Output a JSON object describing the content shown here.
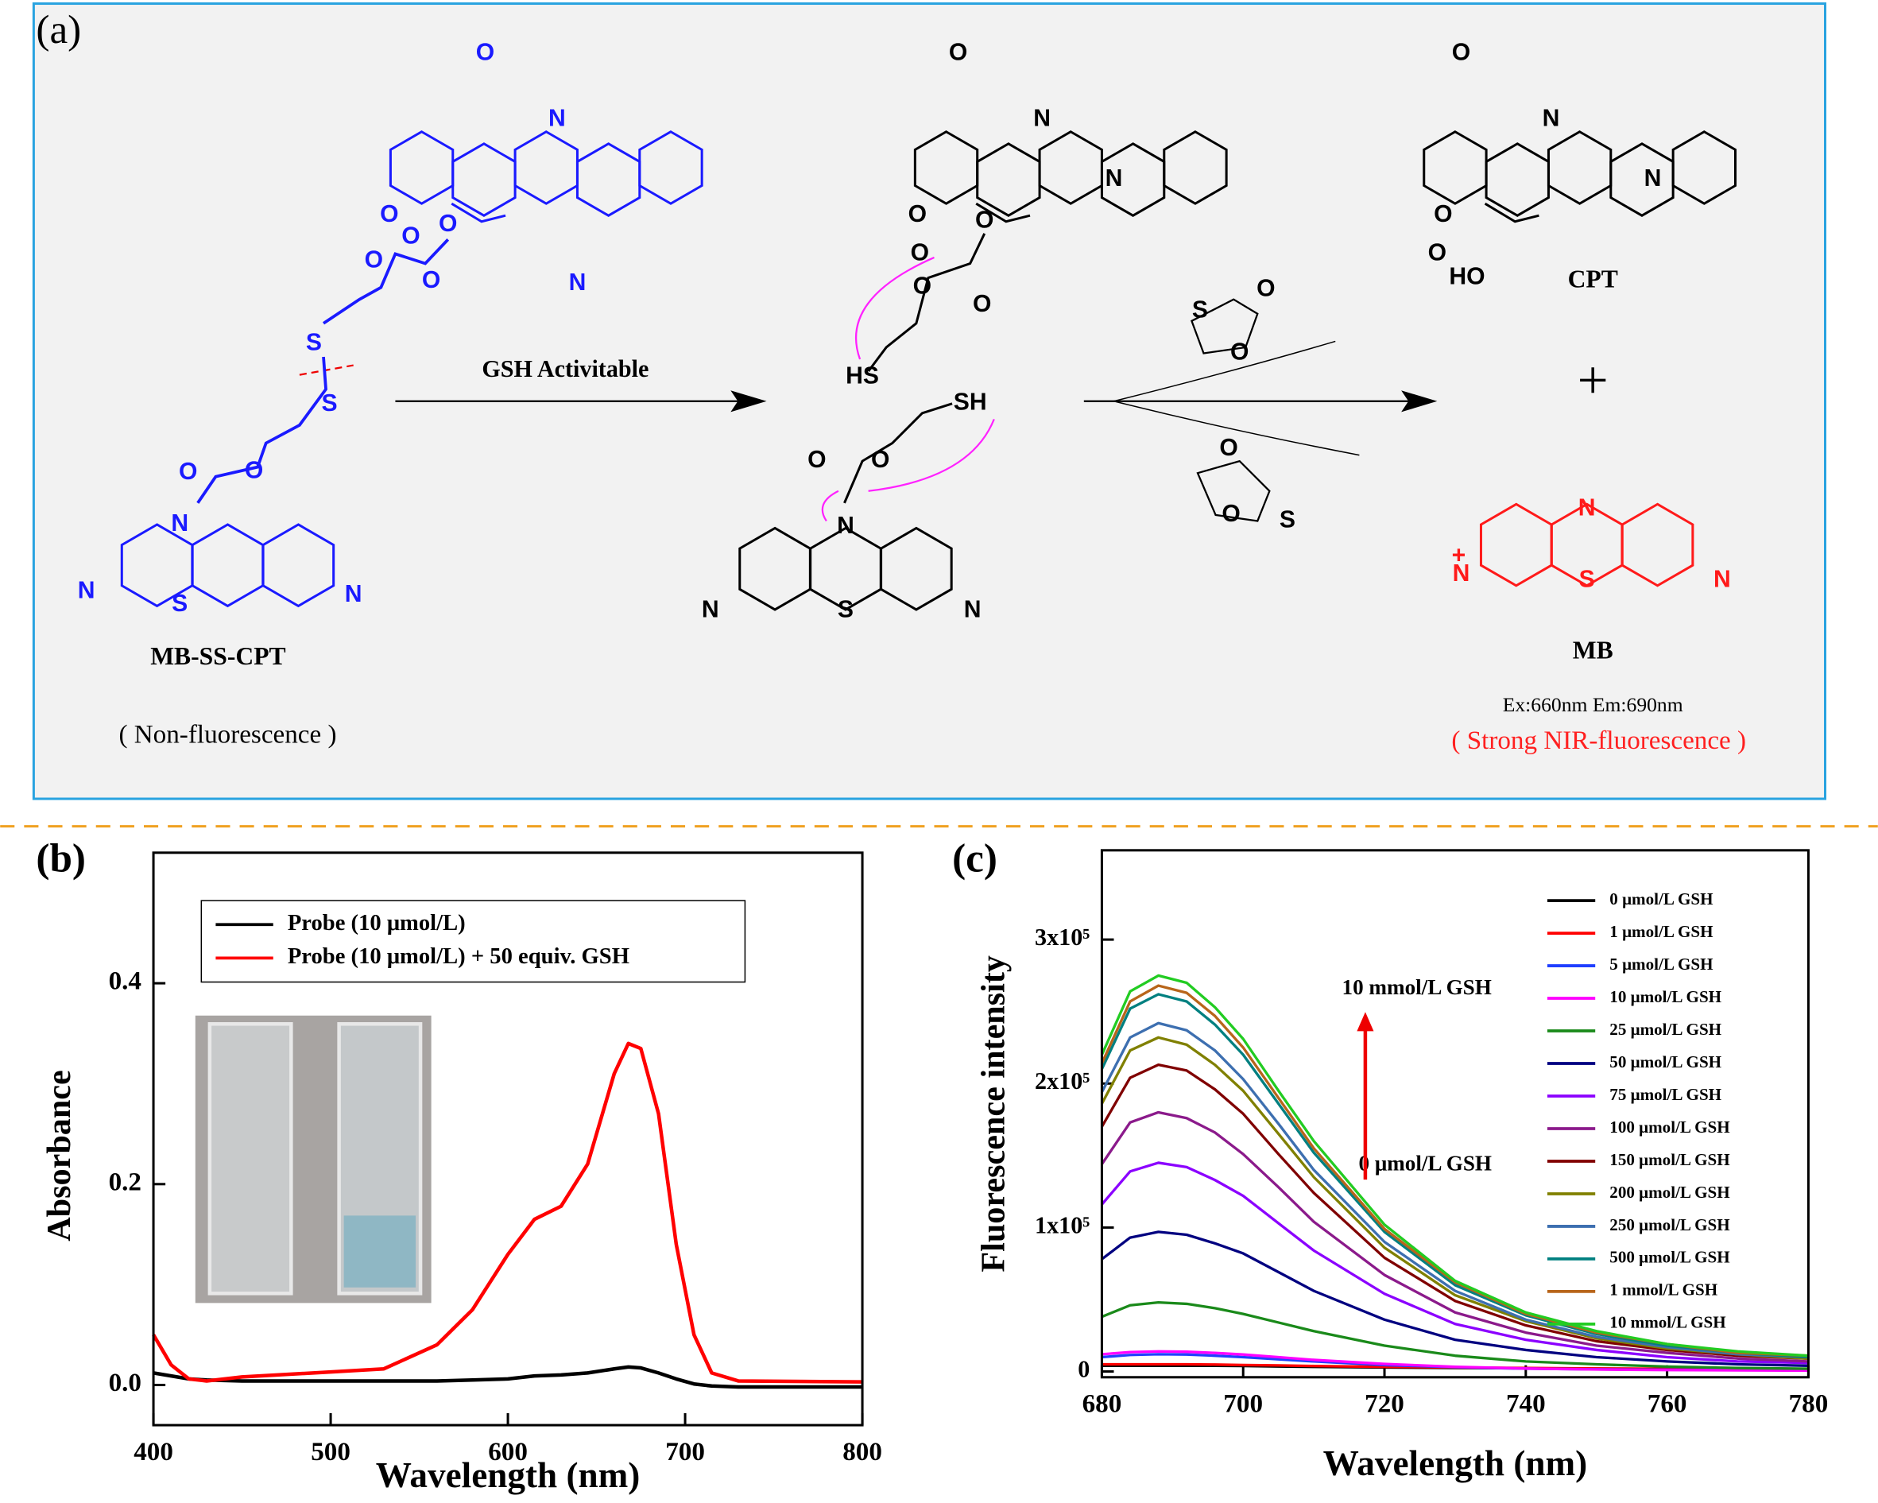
{
  "scheme": {
    "panel_label": "(a)",
    "probe": {
      "name": "MB-SS-CPT",
      "note": "( Non-fluorescence )",
      "atoms": [
        "O",
        "O",
        "O",
        "N",
        "N",
        "O",
        "O",
        "O",
        "S",
        "S",
        "O",
        "O",
        "N",
        "S",
        "N",
        "N"
      ]
    },
    "arrow_label": "GSH  Activitable",
    "intermediate": {
      "atoms": [
        "O",
        "O",
        "O",
        "N",
        "N",
        "O",
        "O",
        "O",
        "HS",
        "SH",
        "O",
        "O",
        "N",
        "S",
        "N",
        "N"
      ]
    },
    "byproducts": {
      "atoms": [
        "S",
        "O",
        "O",
        "O",
        "O",
        "S"
      ]
    },
    "cpt": {
      "name": "CPT",
      "atoms": [
        "O",
        "O",
        "O",
        "N",
        "N",
        "HO"
      ]
    },
    "plus": "+",
    "mb": {
      "name": "MB",
      "wavelengths": "Ex:660nm  Em:690nm",
      "note": "( Strong NIR-fluorescence )",
      "atoms": [
        "N",
        "S",
        "N",
        "+",
        "N"
      ]
    }
  },
  "chart_data": [
    {
      "type": "line",
      "panel_label": "(b)",
      "xlabel": "Wavelength (nm)",
      "ylabel": "Absorbance",
      "x": [
        400,
        410,
        420,
        430,
        450,
        500,
        530,
        560,
        580,
        600,
        615,
        630,
        645,
        660,
        668,
        675,
        685,
        695,
        705,
        715,
        730,
        800
      ],
      "series": [
        {
          "name": "Probe (10 μmol/L)",
          "color": "#000000",
          "values": [
            0.012,
            0.009,
            0.006,
            0.005,
            0.004,
            0.004,
            0.004,
            0.004,
            0.005,
            0.006,
            0.009,
            0.01,
            0.012,
            0.016,
            0.018,
            0.017,
            0.012,
            0.006,
            0.001,
            -0.001,
            -0.002,
            -0.002
          ]
        },
        {
          "name": "Probe (10 μmol/L) +  50 equiv. GSH",
          "color": "#ff0000",
          "values": [
            0.05,
            0.02,
            0.006,
            0.004,
            0.008,
            0.013,
            0.016,
            0.04,
            0.075,
            0.13,
            0.165,
            0.178,
            0.22,
            0.31,
            0.34,
            0.335,
            0.27,
            0.14,
            0.05,
            0.012,
            0.004,
            0.003
          ]
        }
      ],
      "xlim": [
        400,
        800
      ],
      "xticks": [
        400,
        500,
        600,
        700,
        800
      ],
      "ylim": [
        -0.04,
        0.53
      ],
      "yticks": [
        {
          "value": 0,
          "label": "0.0"
        },
        0.2,
        0.4
      ]
    },
    {
      "type": "line",
      "panel_label": "(c)",
      "xlabel": "Wavelength (nm)",
      "ylabel": "Fluorescence intensity",
      "x": [
        680,
        684,
        688,
        692,
        696,
        700,
        705,
        710,
        720,
        730,
        740,
        750,
        760,
        770,
        780
      ],
      "series": [
        {
          "name": "0 μmol/L GSH",
          "color": "#000000",
          "values": [
            4000,
            4000,
            4000,
            4000,
            4000,
            3800,
            3500,
            3200,
            2800,
            2500,
            2200,
            2000,
            1800,
            1600,
            1500
          ]
        },
        {
          "name": "1 μmol/L GSH",
          "color": "#ff0000",
          "values": [
            5000,
            5000,
            5000,
            5000,
            4800,
            4500,
            4200,
            3800,
            3200,
            2800,
            2400,
            2100,
            1900,
            1700,
            1600
          ]
        },
        {
          "name": "5 μmol/L GSH",
          "color": "#1f3fff",
          "values": [
            10000,
            11500,
            12000,
            11800,
            11000,
            10000,
            8500,
            7000,
            4500,
            3000,
            2000,
            1500,
            1200,
            1000,
            900
          ]
        },
        {
          "name": "10 μmol/L GSH",
          "color": "#ff00ff",
          "values": [
            12000,
            13500,
            14000,
            13700,
            12900,
            11800,
            10000,
            8100,
            5200,
            3200,
            2100,
            1400,
            1000,
            800,
            600
          ]
        },
        {
          "name": "25 μmol/L GSH",
          "color": "#1a8a1a",
          "values": [
            38000,
            46000,
            48000,
            47000,
            44000,
            40000,
            34000,
            28000,
            18000,
            11000,
            7000,
            5000,
            3400,
            2400,
            1900
          ]
        },
        {
          "name": "50 μmol/L GSH",
          "color": "#000080",
          "values": [
            78000,
            93000,
            97000,
            95000,
            89000,
            82000,
            69000,
            56000,
            36000,
            22000,
            15000,
            10000,
            7000,
            5000,
            4000
          ]
        },
        {
          "name": "75 μmol/L GSH",
          "color": "#8b00ff",
          "values": [
            116000,
            139000,
            145000,
            142000,
            133000,
            122000,
            103000,
            84000,
            54000,
            33000,
            22000,
            15000,
            10000,
            7000,
            6000
          ]
        },
        {
          "name": "100 μmol/L GSH",
          "color": "#8b1a8b",
          "values": [
            144000,
            173000,
            180000,
            176000,
            166000,
            151000,
            128000,
            104000,
            67000,
            41000,
            27000,
            18000,
            13000,
            9000,
            7000
          ]
        },
        {
          "name": "150 μmol/L GSH",
          "color": "#800000",
          "values": [
            170000,
            204000,
            213000,
            209000,
            196000,
            179000,
            151000,
            124000,
            79000,
            49000,
            32000,
            21000,
            15000,
            11000,
            9000
          ]
        },
        {
          "name": "200 μmol/L GSH",
          "color": "#808000",
          "values": [
            186000,
            223000,
            232000,
            227000,
            213000,
            195000,
            165000,
            135000,
            86000,
            53000,
            35000,
            23000,
            16000,
            12000,
            9000
          ]
        },
        {
          "name": "250 μmol/L GSH",
          "color": "#3d6fb0",
          "values": [
            194000,
            232000,
            242000,
            237000,
            223000,
            203000,
            172000,
            140000,
            90000,
            56000,
            36000,
            24000,
            17000,
            12000,
            10000
          ]
        },
        {
          "name": "500 μmol/L GSH",
          "color": "#008080",
          "values": [
            210000,
            252000,
            262000,
            257000,
            241000,
            220000,
            186000,
            152000,
            97000,
            60000,
            39000,
            26000,
            18000,
            13000,
            10000
          ]
        },
        {
          "name": "1 mmol/L GSH",
          "color": "#b8651a",
          "values": [
            214000,
            257000,
            268000,
            263000,
            247000,
            225000,
            190000,
            155000,
            99000,
            62000,
            40000,
            27000,
            19000,
            13000,
            11000
          ]
        },
        {
          "name": "10 mmol/L GSH",
          "color": "#22cc22",
          "values": [
            220000,
            264000,
            275000,
            270000,
            253000,
            231000,
            195000,
            160000,
            102000,
            63000,
            41000,
            28000,
            19000,
            14000,
            11000
          ]
        }
      ],
      "xlim": [
        680,
        780
      ],
      "xticks": [
        680,
        700,
        720,
        740,
        760,
        780
      ],
      "ylim": [
        -4000,
        362000
      ],
      "yticks": [
        0,
        {
          "value": 100000,
          "label": "1x10⁵"
        },
        {
          "value": 200000,
          "label": "2x10⁵"
        },
        {
          "value": 300000,
          "label": "3x10⁵"
        }
      ],
      "annotations": [
        {
          "text": "10 mmol/L GSH"
        },
        {
          "text": "0 μmol/L GSH"
        }
      ]
    }
  ]
}
